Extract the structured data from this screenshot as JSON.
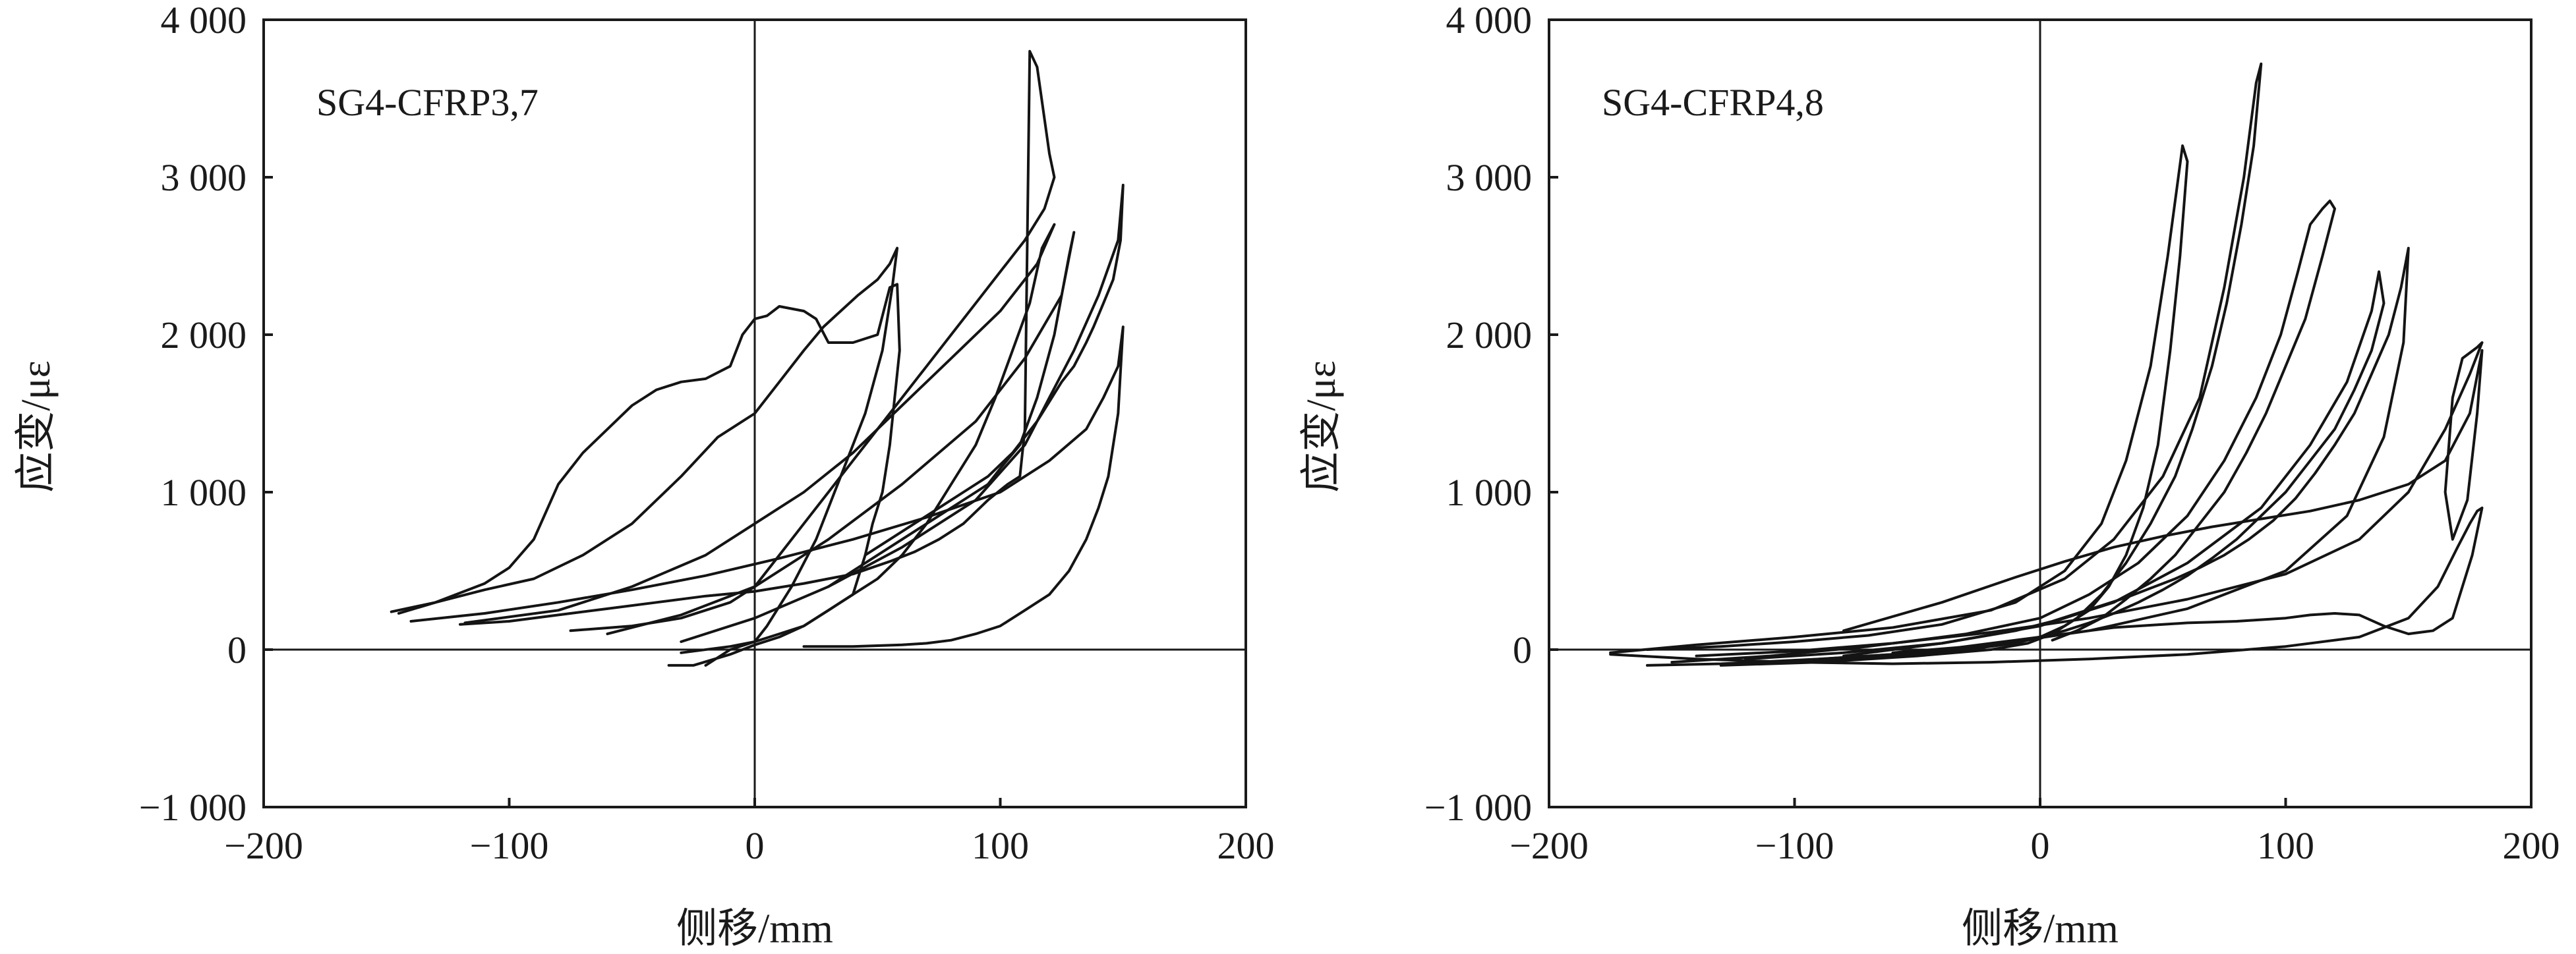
{
  "chart_data": [
    {
      "type": "line",
      "panel_label": "SG4-CFRP3,7",
      "xlabel": "侧移/mm",
      "ylabel": "应变/με",
      "xlim": [
        -200,
        200
      ],
      "ylim": [
        -1000,
        4000
      ],
      "x_ticks": [
        -200,
        -100,
        0,
        100,
        200
      ],
      "x_tick_labels": [
        "−200",
        "−100",
        "0",
        "100",
        "200"
      ],
      "y_ticks": [
        -1000,
        0,
        1000,
        2000,
        3000,
        4000
      ],
      "y_tick_labels": [
        "−1 000",
        "0",
        "1 000",
        "2 000",
        "3 000",
        "4 000"
      ],
      "grid": false,
      "zero_lines": true,
      "series": [
        {
          "x": [
            -145,
            -130,
            -110,
            -90,
            -70,
            -50,
            -30,
            -15,
            0,
            10,
            20,
            28,
            35,
            42,
            50,
            55,
            58,
            56,
            52,
            45,
            35,
            25,
            15,
            5,
            0,
            -10,
            -20
          ],
          "y": [
            230,
            300,
            380,
            450,
            600,
            800,
            1100,
            1350,
            1500,
            1700,
            1900,
            2050,
            2150,
            2250,
            2350,
            2450,
            2550,
            2300,
            1900,
            1500,
            1100,
            700,
            400,
            150,
            50,
            0,
            -100
          ]
        },
        {
          "x": [
            -148,
            -130,
            -110,
            -100,
            -90,
            -80,
            -70,
            -60,
            -50,
            -40,
            -30,
            -20,
            -10,
            -5,
            0,
            5,
            10,
            20,
            25,
            30,
            40,
            50,
            55,
            58,
            59,
            57,
            55,
            52,
            48,
            45,
            42,
            40,
            30,
            20,
            10,
            0,
            -10,
            -25,
            -35
          ],
          "y": [
            240,
            300,
            420,
            520,
            700,
            1050,
            1250,
            1400,
            1550,
            1650,
            1700,
            1720,
            1800,
            2000,
            2100,
            2120,
            2180,
            2150,
            2100,
            1950,
            1950,
            2000,
            2300,
            2320,
            1900,
            1600,
            1300,
            1000,
            800,
            600,
            450,
            350,
            250,
            150,
            80,
            30,
            -30,
            -100,
            -100
          ]
        },
        {
          "x": [
            -120,
            -100,
            -80,
            -60,
            -40,
            -20,
            0,
            20,
            40,
            55,
            65,
            75,
            85,
            95,
            103,
            108,
            110,
            112,
            115,
            120,
            122,
            118,
            110,
            100,
            90,
            80,
            70,
            60,
            50,
            40,
            30,
            20,
            10,
            0,
            -10,
            -30,
            -50,
            -75
          ],
          "y": [
            160,
            180,
            220,
            260,
            300,
            340,
            370,
            420,
            480,
            560,
            620,
            700,
            800,
            950,
            1050,
            1100,
            1400,
            3800,
            3700,
            3150,
            3000,
            2800,
            2600,
            2400,
            2200,
            2000,
            1800,
            1600,
            1400,
            1200,
            1000,
            800,
            600,
            400,
            300,
            200,
            150,
            120
          ]
        },
        {
          "x": [
            -118,
            -80,
            -50,
            -20,
            0,
            20,
            40,
            60,
            80,
            100,
            115,
            122,
            117,
            112,
            105,
            98,
            90,
            80,
            70,
            60,
            50,
            40,
            30,
            20,
            10,
            0,
            -10,
            -30
          ],
          "y": [
            170,
            250,
            400,
            600,
            800,
            1000,
            1250,
            1550,
            1850,
            2150,
            2450,
            2700,
            2550,
            2200,
            1900,
            1600,
            1300,
            1050,
            800,
            600,
            450,
            350,
            250,
            150,
            100,
            50,
            20,
            -20
          ]
        },
        {
          "x": [
            -60,
            -30,
            0,
            30,
            60,
            90,
            110,
            125,
            130,
            128,
            122,
            115,
            108,
            100,
            95,
            90,
            85,
            80,
            70,
            60,
            50,
            40,
            30
          ],
          "y": [
            100,
            220,
            400,
            700,
            1050,
            1450,
            1850,
            2250,
            2650,
            2500,
            2000,
            1600,
            1300,
            1150,
            1050,
            1000,
            950,
            900,
            800,
            700,
            600,
            500,
            400
          ]
        },
        {
          "x": [
            -140,
            -110,
            -80,
            -50,
            -20,
            10,
            40,
            70,
            100,
            120,
            135,
            142,
            148,
            150,
            148,
            144,
            140,
            135,
            128,
            120,
            110,
            100,
            90,
            80,
            70,
            60,
            50,
            40,
            30,
            20
          ],
          "y": [
            180,
            230,
            300,
            380,
            470,
            580,
            700,
            840,
            1000,
            1200,
            1400,
            1600,
            1800,
            2050,
            1500,
            1100,
            900,
            700,
            500,
            350,
            250,
            150,
            100,
            60,
            40,
            30,
            25,
            20,
            20,
            20
          ]
        },
        {
          "x": [
            -30,
            0,
            30,
            60,
            90,
            110,
            120,
            130,
            140,
            148,
            150,
            149,
            146,
            142,
            138,
            135,
            130,
            125,
            115,
            105,
            95,
            85,
            75,
            65,
            55,
            45
          ],
          "y": [
            50,
            200,
            400,
            650,
            950,
            1300,
            1600,
            1900,
            2250,
            2600,
            2950,
            2600,
            2350,
            2200,
            2050,
            1950,
            1800,
            1700,
            1450,
            1250,
            1100,
            1000,
            900,
            800,
            700,
            600
          ]
        }
      ]
    },
    {
      "type": "line",
      "panel_label": "SG4-CFRP4,8",
      "xlabel": "侧移/mm",
      "ylabel": "应变/με",
      "xlim": [
        -200,
        200
      ],
      "ylim": [
        -1000,
        4000
      ],
      "x_ticks": [
        -200,
        -100,
        0,
        100,
        200
      ],
      "x_tick_labels": [
        "−200",
        "−100",
        "0",
        "100",
        "200"
      ],
      "y_ticks": [
        -1000,
        0,
        1000,
        2000,
        3000,
        4000
      ],
      "y_tick_labels": [
        "−1 000",
        "0",
        "1 000",
        "2 000",
        "3 000",
        "4 000"
      ],
      "grid": false,
      "zero_lines": true,
      "series": [
        {
          "x": [
            -160,
            -130,
            -100,
            -70,
            -40,
            -10,
            10,
            25,
            35,
            45,
            52,
            58,
            60,
            57,
            53,
            48,
            42,
            35,
            28,
            20,
            10,
            0,
            -10,
            -30,
            -50,
            -80,
            -110
          ],
          "y": [
            0,
            20,
            50,
            90,
            160,
            300,
            500,
            800,
            1200,
            1800,
            2500,
            3200,
            3100,
            2500,
            1900,
            1300,
            900,
            600,
            400,
            250,
            150,
            80,
            40,
            0,
            -30,
            -60,
            -80
          ]
        },
        {
          "x": [
            -175,
            -140,
            -100,
            -60,
            -20,
            10,
            30,
            50,
            65,
            75,
            83,
            88,
            90,
            87,
            82,
            76,
            70,
            62,
            55,
            45,
            35,
            25,
            15,
            5,
            -5,
            -20,
            -50,
            -90,
            -130
          ],
          "y": [
            -20,
            30,
            80,
            140,
            250,
            450,
            700,
            1100,
            1600,
            2300,
            3000,
            3600,
            3720,
            3200,
            2700,
            2200,
            1800,
            1400,
            1100,
            800,
            550,
            350,
            200,
            100,
            40,
            0,
            -40,
            -80,
            -100
          ]
        },
        {
          "x": [
            -150,
            -110,
            -70,
            -30,
            0,
            20,
            40,
            60,
            75,
            88,
            98,
            105,
            110,
            115,
            118,
            120,
            115,
            108,
            100,
            92,
            84,
            75,
            65,
            55,
            45,
            35,
            25,
            15,
            5
          ],
          "y": [
            -80,
            -40,
            20,
            100,
            200,
            350,
            550,
            850,
            1200,
            1600,
            2000,
            2400,
            2700,
            2800,
            2850,
            2800,
            2500,
            2100,
            1800,
            1500,
            1250,
            1000,
            800,
            600,
            450,
            320,
            200,
            120,
            60
          ]
        },
        {
          "x": [
            -120,
            -80,
            -40,
            0,
            30,
            60,
            90,
            110,
            125,
            135,
            138,
            140,
            135,
            128,
            120,
            110,
            100,
            90,
            80,
            70,
            60,
            50,
            40,
            30,
            20,
            10,
            0,
            -20,
            -60
          ],
          "y": [
            -60,
            -20,
            40,
            150,
            300,
            550,
            900,
            1300,
            1700,
            2150,
            2400,
            2200,
            1900,
            1650,
            1400,
            1200,
            1000,
            850,
            700,
            580,
            470,
            380,
            300,
            230,
            170,
            120,
            80,
            30,
            -20
          ]
        },
        {
          "x": [
            -100,
            -60,
            -20,
            20,
            60,
            100,
            125,
            140,
            148,
            150,
            147,
            142,
            135,
            128,
            120,
            112,
            104,
            95,
            85,
            75,
            65,
            55,
            45,
            35,
            25,
            15,
            5,
            -10,
            -40,
            -80
          ],
          "y": [
            -70,
            -30,
            30,
            120,
            260,
            500,
            850,
            1350,
            1950,
            2550,
            2300,
            2000,
            1750,
            1500,
            1300,
            1120,
            960,
            820,
            700,
            600,
            520,
            450,
            390,
            330,
            280,
            230,
            180,
            120,
            40,
            -40
          ]
        },
        {
          "x": [
            -140,
            -100,
            -60,
            -20,
            20,
            60,
            100,
            130,
            150,
            165,
            175,
            180,
            178,
            172,
            168,
            165,
            168,
            174,
            178,
            180,
            175,
            165,
            150,
            130,
            110,
            90,
            70,
            50,
            30,
            10,
            -10,
            -40,
            -80
          ],
          "y": [
            -40,
            -10,
            40,
            110,
            200,
            320,
            480,
            700,
            1000,
            1400,
            1750,
            1950,
            1920,
            1850,
            1600,
            1000,
            700,
            950,
            1500,
            1900,
            1500,
            1200,
            1050,
            950,
            880,
            830,
            780,
            720,
            650,
            560,
            460,
            300,
            120
          ]
        },
        {
          "x": [
            -175,
            -140,
            -100,
            -60,
            -20,
            20,
            60,
            100,
            130,
            150,
            162,
            170,
            175,
            178,
            180,
            176,
            168,
            160,
            150,
            140,
            130,
            120,
            110,
            100,
            90,
            80,
            70,
            60,
            50,
            40,
            30,
            20,
            10,
            0,
            -20,
            -50,
            -90,
            -130,
            -160
          ],
          "y": [
            -30,
            -60,
            -80,
            -90,
            -80,
            -60,
            -30,
            20,
            80,
            200,
            400,
            650,
            800,
            880,
            900,
            600,
            200,
            120,
            100,
            150,
            220,
            230,
            220,
            200,
            190,
            180,
            175,
            170,
            160,
            150,
            140,
            120,
            100,
            80,
            40,
            -20,
            -60,
            -90,
            -100
          ]
        }
      ]
    }
  ]
}
